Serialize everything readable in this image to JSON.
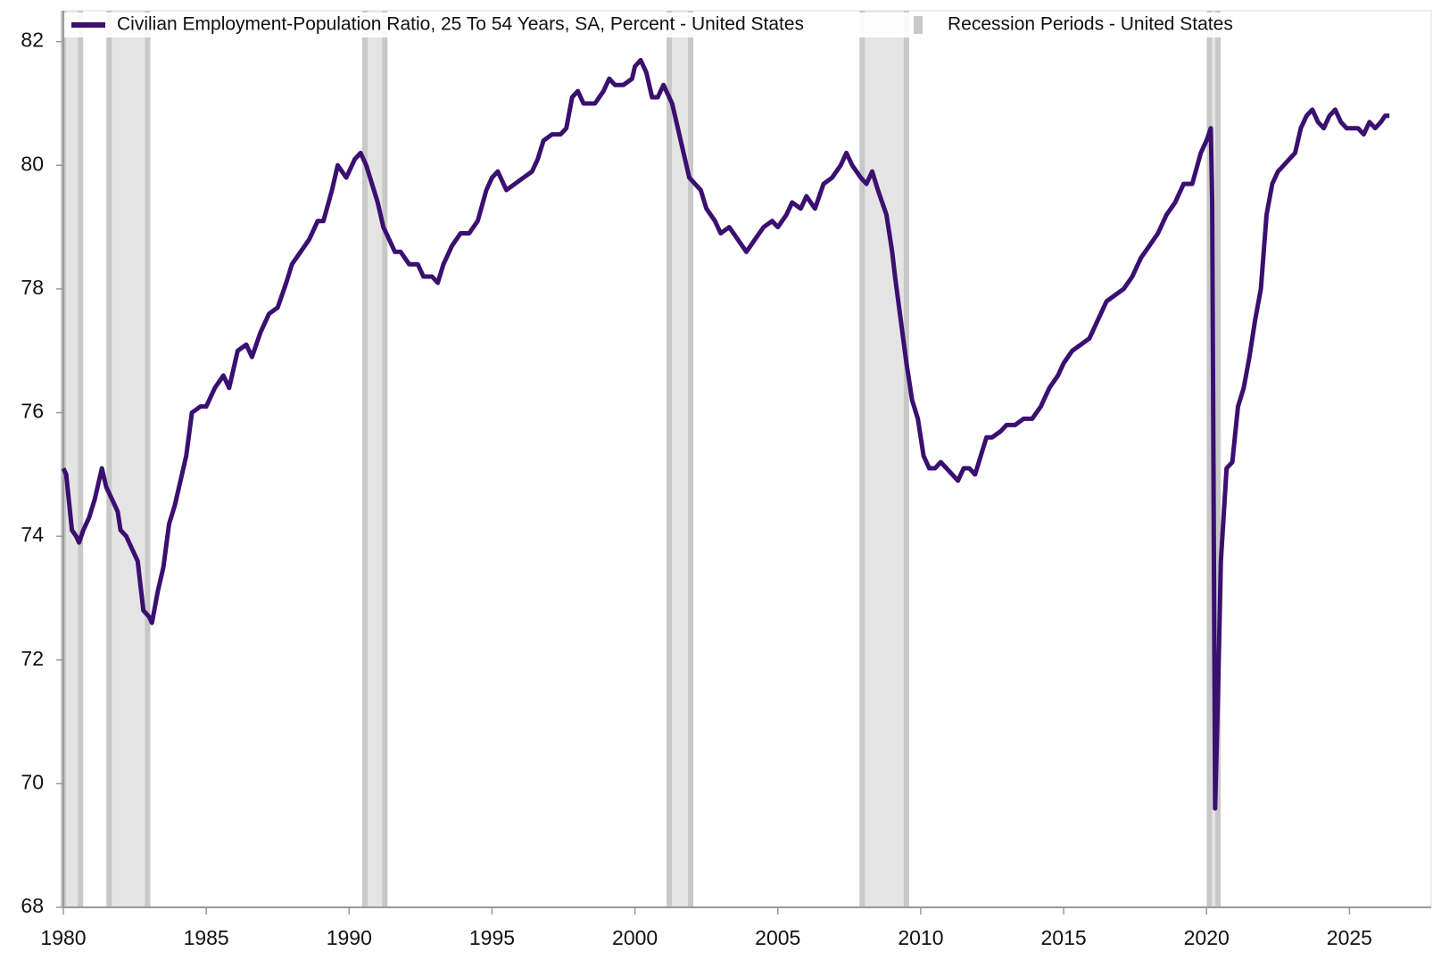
{
  "chart_data": {
    "type": "line",
    "x": [
      1980.0,
      1980.1,
      1980.3,
      1980.45,
      1980.55,
      1980.7,
      1980.9,
      1981.1,
      1981.35,
      1981.5,
      1981.7,
      1981.9,
      1982.0,
      1982.2,
      1982.4,
      1982.6,
      1982.8,
      1983.0,
      1983.1,
      1983.3,
      1983.5,
      1983.7,
      1983.9,
      1984.1,
      1984.3,
      1984.5,
      1984.8,
      1985.0,
      1985.3,
      1985.6,
      1985.8,
      1986.1,
      1986.4,
      1986.6,
      1986.9,
      1987.2,
      1987.5,
      1987.8,
      1988.0,
      1988.3,
      1988.6,
      1988.9,
      1989.1,
      1989.4,
      1989.6,
      1989.9,
      1990.2,
      1990.4,
      1990.6,
      1990.8,
      1991.0,
      1991.2,
      1991.4,
      1991.6,
      1991.8,
      1992.1,
      1992.4,
      1992.6,
      1992.9,
      1993.1,
      1993.3,
      1993.6,
      1993.9,
      1994.2,
      1994.5,
      1994.8,
      1995.0,
      1995.2,
      1995.5,
      1995.8,
      1996.1,
      1996.4,
      1996.6,
      1996.8,
      1997.1,
      1997.4,
      1997.6,
      1997.8,
      1998.0,
      1998.2,
      1998.6,
      1998.9,
      1999.1,
      1999.3,
      1999.6,
      1999.9,
      2000.0,
      2000.2,
      2000.4,
      2000.6,
      2000.8,
      2001.0,
      2001.3,
      2001.5,
      2001.7,
      2001.9,
      2002.1,
      2002.3,
      2002.5,
      2002.8,
      2003.0,
      2003.3,
      2003.6,
      2003.9,
      2004.2,
      2004.5,
      2004.8,
      2005.0,
      2005.3,
      2005.5,
      2005.8,
      2006.0,
      2006.3,
      2006.6,
      2006.9,
      2007.2,
      2007.4,
      2007.6,
      2007.9,
      2008.1,
      2008.3,
      2008.5,
      2008.8,
      2009.0,
      2009.1,
      2009.3,
      2009.5,
      2009.7,
      2009.9,
      2010.1,
      2010.3,
      2010.5,
      2010.7,
      2010.9,
      2011.1,
      2011.3,
      2011.5,
      2011.7,
      2011.9,
      2012.1,
      2012.3,
      2012.5,
      2012.8,
      2013.0,
      2013.3,
      2013.6,
      2013.9,
      2014.2,
      2014.5,
      2014.8,
      2015.0,
      2015.3,
      2015.6,
      2015.9,
      2016.2,
      2016.5,
      2016.8,
      2017.1,
      2017.4,
      2017.7,
      2018.0,
      2018.3,
      2018.6,
      2018.9,
      2019.2,
      2019.5,
      2019.8,
      2020.0,
      2020.15,
      2020.2,
      2020.3,
      2020.4,
      2020.5,
      2020.7,
      2020.9,
      2021.1,
      2021.3,
      2021.5,
      2021.7,
      2021.9,
      2022.1,
      2022.3,
      2022.5,
      2022.7,
      2022.9,
      2023.1,
      2023.3,
      2023.5,
      2023.7,
      2023.9,
      2024.1,
      2024.3,
      2024.5,
      2024.7,
      2024.9,
      2025.1,
      2025.3,
      2025.5,
      2025.7,
      2025.9,
      2026.1,
      2026.25,
      2026.4
    ],
    "series": [
      {
        "name": "Civilian Employment-Population Ratio, 25 To 54 Years, SA, Percent - United States",
        "color": "#3b0f70",
        "values": [
          75.1,
          75.0,
          74.1,
          74.0,
          73.9,
          74.1,
          74.3,
          74.6,
          75.1,
          74.8,
          74.6,
          74.4,
          74.1,
          74.0,
          73.8,
          73.6,
          72.8,
          72.7,
          72.6,
          73.1,
          73.5,
          74.2,
          74.5,
          74.9,
          75.3,
          76.0,
          76.1,
          76.1,
          76.4,
          76.6,
          76.4,
          77.0,
          77.1,
          76.9,
          77.3,
          77.6,
          77.7,
          78.1,
          78.4,
          78.6,
          78.8,
          79.1,
          79.1,
          79.6,
          80.0,
          79.8,
          80.1,
          80.2,
          80.0,
          79.7,
          79.4,
          79.0,
          78.8,
          78.6,
          78.6,
          78.4,
          78.4,
          78.2,
          78.2,
          78.1,
          78.4,
          78.7,
          78.9,
          78.9,
          79.1,
          79.6,
          79.8,
          79.9,
          79.6,
          79.7,
          79.8,
          79.9,
          80.1,
          80.4,
          80.5,
          80.5,
          80.6,
          81.1,
          81.2,
          81.0,
          81.0,
          81.2,
          81.4,
          81.3,
          81.3,
          81.4,
          81.6,
          81.7,
          81.5,
          81.1,
          81.1,
          81.3,
          81.0,
          80.6,
          80.2,
          79.8,
          79.7,
          79.6,
          79.3,
          79.1,
          78.9,
          79.0,
          78.8,
          78.6,
          78.8,
          79.0,
          79.1,
          79.0,
          79.2,
          79.4,
          79.3,
          79.5,
          79.3,
          79.7,
          79.8,
          80.0,
          80.2,
          80.0,
          79.8,
          79.7,
          79.9,
          79.6,
          79.2,
          78.6,
          78.2,
          77.5,
          76.8,
          76.2,
          75.9,
          75.3,
          75.1,
          75.1,
          75.2,
          75.1,
          75.0,
          74.9,
          75.1,
          75.1,
          75.0,
          75.3,
          75.6,
          75.6,
          75.7,
          75.8,
          75.8,
          75.9,
          75.9,
          76.1,
          76.4,
          76.6,
          76.8,
          77.0,
          77.1,
          77.2,
          77.5,
          77.8,
          77.9,
          78.0,
          78.2,
          78.5,
          78.7,
          78.9,
          79.2,
          79.4,
          79.7,
          79.7,
          80.2,
          80.4,
          80.6,
          79.4,
          69.6,
          71.4,
          73.6,
          75.1,
          75.2,
          76.1,
          76.4,
          76.9,
          77.5,
          78.0,
          79.2,
          79.7,
          79.9,
          80.0,
          80.1,
          80.2,
          80.6,
          80.8,
          80.9,
          80.7,
          80.6,
          80.8,
          80.9,
          80.7,
          80.6,
          80.6,
          80.6,
          80.5,
          80.7,
          80.6,
          80.7,
          80.8,
          80.8
        ]
      }
    ],
    "recessions": {
      "name": "Recession Periods - United States",
      "color": "#e4e4e4",
      "edge_color": "#c8c8c8",
      "periods": [
        [
          1980.0,
          1980.6
        ],
        [
          1981.6,
          1982.95
        ],
        [
          1990.55,
          1991.25
        ],
        [
          2001.2,
          2001.95
        ],
        [
          2007.95,
          2009.5
        ],
        [
          2020.1,
          2020.4
        ]
      ]
    },
    "xlim": [
      1980,
      2027.86
    ],
    "ylim": [
      68,
      82.5
    ],
    "xticks": [
      1980,
      1985,
      1990,
      1995,
      2000,
      2005,
      2010,
      2015,
      2020,
      2025
    ],
    "yticks": [
      68,
      70,
      72,
      74,
      76,
      78,
      80,
      82
    ]
  }
}
